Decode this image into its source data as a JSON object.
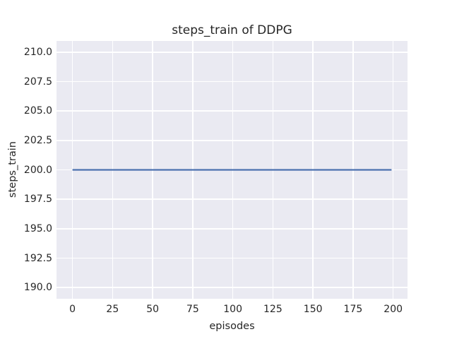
{
  "figure": {
    "background": "#ffffff",
    "text_color": "#262626"
  },
  "chart_data": {
    "type": "line",
    "title": "steps_train of DDPG",
    "xlabel": "episodes",
    "ylabel": "steps_train",
    "x_ticks": [
      0,
      25,
      50,
      75,
      100,
      125,
      150,
      175,
      200
    ],
    "x_tick_labels": [
      "0",
      "25",
      "50",
      "75",
      "100",
      "125",
      "150",
      "175",
      "200"
    ],
    "y_ticks": [
      190.0,
      192.5,
      195.0,
      197.5,
      200.0,
      202.5,
      205.0,
      207.5,
      210.0
    ],
    "y_tick_labels": [
      "190.0",
      "192.5",
      "195.0",
      "197.5",
      "200.0",
      "202.5",
      "205.0",
      "207.5",
      "210.0"
    ],
    "xlim": [
      -9.95,
      208.95
    ],
    "ylim": [
      189.05,
      210.95
    ],
    "grid": true,
    "legend": "none",
    "plot_background": "#eaeaf2",
    "gridline_color": "#ffffff",
    "series": [
      {
        "name": "steps_train",
        "color": "#4c72b0",
        "x": [
          0,
          199
        ],
        "y": [
          200,
          200
        ],
        "note": "constant value 200 for all episodes 0-199"
      }
    ]
  }
}
